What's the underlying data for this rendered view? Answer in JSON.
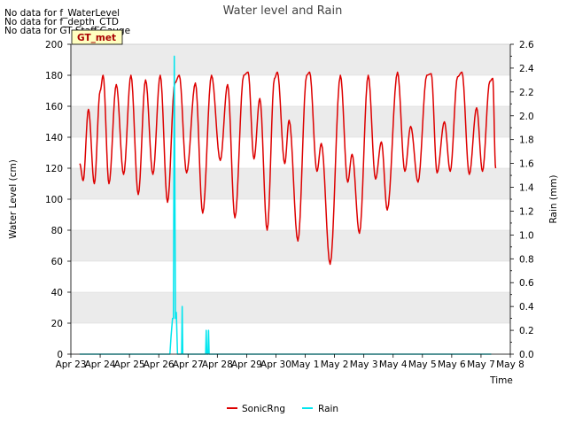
{
  "chart_data": {
    "type": "line",
    "title": "Water level and Rain",
    "xlabel": "Time",
    "ylabel": "Water Level (cm)",
    "ylabel_right": "Rain (mm)",
    "ylim": [
      0,
      200
    ],
    "ylim_right": [
      0,
      2.6
    ],
    "yticks": [
      "0",
      "20",
      "40",
      "60",
      "80",
      "100",
      "120",
      "140",
      "160",
      "180",
      "200"
    ],
    "yticks_right": [
      "0.0",
      "0.2",
      "0.4",
      "0.6",
      "0.8",
      "1.0",
      "1.2",
      "1.4",
      "1.6",
      "1.8",
      "2.0",
      "2.2",
      "2.4",
      "2.6"
    ],
    "xticks": [
      "Apr 23",
      "Apr 24",
      "Apr 25",
      "Apr 26",
      "Apr 27",
      "Apr 28",
      "Apr 29",
      "Apr 30",
      "May 1",
      "May 2",
      "May 3",
      "May 4",
      "May 5",
      "May 6",
      "May 7",
      "May 8"
    ],
    "xlim_days": [
      0,
      15
    ],
    "no_data_notes": [
      "No data for f_WaterLevel",
      "No data for f_depth_CTD",
      "No data for GT Staff Gauge"
    ],
    "badge_label": "GT_met",
    "legend": [
      "SonicRng",
      "Rain"
    ],
    "colors": {
      "sonic": "#dd0000",
      "rain": "#00e5ee",
      "band": "#ebebeb",
      "axis": "#000000",
      "badge_bg": "#ffffc0",
      "badge_text": "#aa0000"
    },
    "series": [
      {
        "name": "SonicRng",
        "axis": "left",
        "peaks": [
          [
            0.3,
            123
          ],
          [
            0.42,
            112
          ],
          [
            0.6,
            158
          ],
          [
            0.8,
            110
          ],
          [
            1.0,
            170
          ],
          [
            1.1,
            180
          ],
          [
            1.3,
            110
          ],
          [
            1.55,
            174
          ],
          [
            1.8,
            116
          ],
          [
            2.05,
            180
          ],
          [
            2.3,
            103
          ],
          [
            2.55,
            177
          ],
          [
            2.8,
            116
          ],
          [
            3.05,
            180
          ],
          [
            3.3,
            98
          ],
          [
            3.55,
            175
          ],
          [
            3.7,
            180
          ],
          [
            3.95,
            117
          ],
          [
            4.25,
            175
          ],
          [
            4.5,
            91
          ],
          [
            4.8,
            180
          ],
          [
            5.1,
            125
          ],
          [
            5.35,
            174
          ],
          [
            5.6,
            88
          ],
          [
            5.9,
            180
          ],
          [
            6.05,
            182
          ],
          [
            6.25,
            126
          ],
          [
            6.45,
            165
          ],
          [
            6.7,
            80
          ],
          [
            6.95,
            178
          ],
          [
            7.05,
            182
          ],
          [
            7.3,
            123
          ],
          [
            7.45,
            151
          ],
          [
            7.75,
            73
          ],
          [
            8.05,
            180
          ],
          [
            8.15,
            182
          ],
          [
            8.4,
            118
          ],
          [
            8.55,
            136
          ],
          [
            8.85,
            58
          ],
          [
            9.2,
            180
          ],
          [
            9.45,
            111
          ],
          [
            9.6,
            129
          ],
          [
            9.85,
            78
          ],
          [
            10.15,
            180
          ],
          [
            10.4,
            113
          ],
          [
            10.6,
            137
          ],
          [
            10.8,
            93
          ],
          [
            11.15,
            182
          ],
          [
            11.4,
            118
          ],
          [
            11.6,
            147
          ],
          [
            11.85,
            111
          ],
          [
            12.15,
            180
          ],
          [
            12.3,
            181
          ],
          [
            12.5,
            117
          ],
          [
            12.75,
            150
          ],
          [
            12.95,
            118
          ],
          [
            13.2,
            179
          ],
          [
            13.35,
            182
          ],
          [
            13.6,
            116
          ],
          [
            13.85,
            159
          ],
          [
            14.05,
            118
          ],
          [
            14.3,
            176
          ],
          [
            14.4,
            178
          ],
          [
            14.5,
            120
          ]
        ]
      },
      {
        "name": "Rain",
        "axis": "right",
        "points": [
          [
            0.3,
            0.0
          ],
          [
            3.38,
            0.0
          ],
          [
            3.42,
            0.15
          ],
          [
            3.47,
            0.3
          ],
          [
            3.5,
            0.3
          ],
          [
            3.53,
            2.5
          ],
          [
            3.57,
            0.3
          ],
          [
            3.6,
            0.35
          ],
          [
            3.64,
            0.0
          ],
          [
            3.78,
            0.0
          ],
          [
            3.8,
            0.4
          ],
          [
            3.82,
            0.0
          ],
          [
            4.6,
            0.0
          ],
          [
            4.62,
            0.2
          ],
          [
            4.64,
            0.0
          ],
          [
            4.68,
            0.0
          ],
          [
            4.7,
            0.2
          ],
          [
            4.72,
            0.0
          ],
          [
            14.35,
            0.0
          ]
        ]
      }
    ]
  }
}
